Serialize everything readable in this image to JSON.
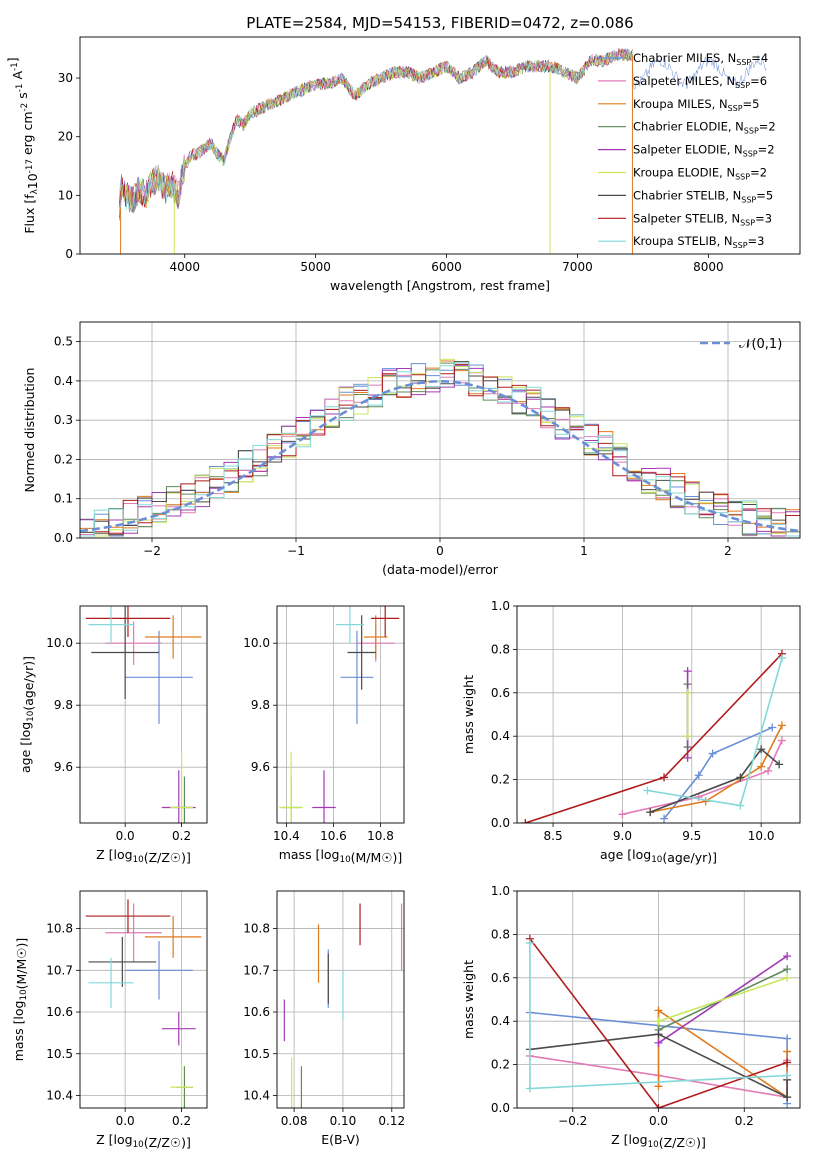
{
  "figure": {
    "title": "PLATE=2584, MJD=54153, FIBERID=0472, z=0.086"
  },
  "models": [
    {
      "name": "Chabrier MILES",
      "nssp": "4",
      "color": "#6b8fd6"
    },
    {
      "name": "Salpeter MILES",
      "nssp": "6",
      "color": "#e07bb6"
    },
    {
      "name": "Kroupa MILES",
      "nssp": "5",
      "color": "#e07a1f"
    },
    {
      "name": "Chabrier ELODIE",
      "nssp": "2",
      "color": "#5f8a5a"
    },
    {
      "name": "Salpeter ELODIE",
      "nssp": "2",
      "color": "#a23bb5"
    },
    {
      "name": "Kroupa ELODIE",
      "nssp": "2",
      "color": "#c8e85a"
    },
    {
      "name": "Chabrier STELIB",
      "nssp": "5",
      "color": "#4a4a4a"
    },
    {
      "name": "Salpeter STELIB",
      "nssp": "3",
      "color": "#b01c1c"
    },
    {
      "name": "Kroupa STELIB",
      "nssp": "3",
      "color": "#84d8d8"
    }
  ],
  "chart_data": [
    {
      "id": "spectrum",
      "type": "line",
      "xlabel": "wavelength [Angstrom, rest frame]",
      "ylabel": "Flux [f_λ10^-17 erg cm^-2 s^-1 A^-1]",
      "xlim": [
        3200,
        8700
      ],
      "ylim": [
        0,
        37
      ],
      "xticks": [
        4000,
        5000,
        6000,
        7000,
        8000
      ],
      "yticks": [
        0,
        10,
        20,
        30
      ],
      "grid": false,
      "legend": "top-right",
      "series_envelope": {
        "x": [
          3500,
          3520,
          3550,
          3600,
          3650,
          3700,
          3750,
          3800,
          3850,
          3900,
          3950,
          4000,
          4050,
          4100,
          4150,
          4200,
          4250,
          4300,
          4350,
          4400,
          4450,
          4500,
          4600,
          4700,
          4800,
          4900,
          5000,
          5100,
          5200,
          5300,
          5400,
          5500,
          5600,
          5700,
          5800,
          5900,
          6000,
          6100,
          6200,
          6300,
          6400,
          6500,
          6600,
          6700,
          6800,
          6900,
          7000,
          7100,
          7200,
          7300,
          7400
        ],
        "y": [
          8,
          12,
          10,
          9,
          11,
          10,
          12,
          13,
          11,
          12,
          10,
          15,
          17,
          17,
          18,
          19,
          17,
          16,
          20,
          23,
          22,
          24,
          25,
          26,
          27,
          28,
          29,
          29,
          30,
          27,
          29,
          30,
          31,
          31,
          30,
          31,
          32,
          30,
          31,
          33,
          31,
          31,
          32,
          32,
          32,
          31,
          30,
          33,
          33,
          34,
          34
        ]
      }
    },
    {
      "id": "residuals",
      "type": "bar",
      "xlabel": "(data-model)/error",
      "ylabel": "Normed distribution",
      "xlim": [
        -2.5,
        2.5
      ],
      "ylim": [
        0,
        0.55
      ],
      "xticks": [
        -2,
        -1,
        0,
        1,
        2
      ],
      "yticks": [
        0.0,
        0.1,
        0.2,
        0.3,
        0.4,
        0.5
      ],
      "grid": true,
      "legend": "top-right",
      "reference_label": "𝒩(0,1)",
      "reference_color": "#6b8fd6"
    },
    {
      "id": "age_vs_Z",
      "type": "scatter",
      "xlabel": "Z [log10(Z/Z☉)]",
      "ylabel": "age  [log10(age/yr)]",
      "xlim": [
        -0.16,
        0.29
      ],
      "ylim": [
        9.42,
        10.12
      ],
      "xticks": [
        0.0,
        0.2
      ],
      "yticks": [
        9.6,
        9.8,
        10.0
      ],
      "grid": true,
      "points": [
        {
          "m": 0,
          "x": 0.12,
          "y": 9.89,
          "xerr": 0.12,
          "yerr": 0.15
        },
        {
          "m": 1,
          "x": 0.03,
          "y": 10.0,
          "xerr": 0.1,
          "yerr": 0.07
        },
        {
          "m": 2,
          "x": 0.17,
          "y": 10.02,
          "xerr": 0.1,
          "yerr": 0.07
        },
        {
          "m": 3,
          "x": 0.21,
          "y": 9.47,
          "xerr": 0.03,
          "yerr": 0.1
        },
        {
          "m": 4,
          "x": 0.19,
          "y": 9.47,
          "xerr": 0.06,
          "yerr": 0.12
        },
        {
          "m": 5,
          "x": 0.2,
          "y": 9.47,
          "xerr": 0.04,
          "yerr": 0.18
        },
        {
          "m": 6,
          "x": 0.0,
          "y": 9.97,
          "xerr": 0.12,
          "yerr": 0.15
        },
        {
          "m": 7,
          "x": 0.01,
          "y": 10.08,
          "xerr": 0.15,
          "yerr": 0.06
        },
        {
          "m": 8,
          "x": -0.05,
          "y": 10.06,
          "xerr": 0.08,
          "yerr": 0.06
        }
      ]
    },
    {
      "id": "age_vs_mass",
      "type": "scatter",
      "xlabel": "mass [log10(M/M☉)]",
      "ylabel": "",
      "xlim": [
        10.36,
        10.9
      ],
      "ylim": [
        9.42,
        10.12
      ],
      "xticks": [
        10.4,
        10.6,
        10.8
      ],
      "yticks": [
        9.6,
        9.8,
        10.0
      ],
      "grid": true,
      "points": [
        {
          "m": 0,
          "x": 10.7,
          "y": 9.89,
          "xerr": 0.07,
          "yerr": 0.15
        },
        {
          "m": 1,
          "x": 10.78,
          "y": 10.0,
          "xerr": 0.08,
          "yerr": 0.06
        },
        {
          "m": 2,
          "x": 10.78,
          "y": 10.02,
          "xerr": 0.05,
          "yerr": 0.07
        },
        {
          "m": 3,
          "x": 10.42,
          "y": 9.47,
          "xerr": 0.04,
          "yerr": 0.1
        },
        {
          "m": 4,
          "x": 10.56,
          "y": 9.47,
          "xerr": 0.05,
          "yerr": 0.12
        },
        {
          "m": 5,
          "x": 10.42,
          "y": 9.47,
          "xerr": 0.05,
          "yerr": 0.18
        },
        {
          "m": 6,
          "x": 10.72,
          "y": 9.97,
          "xerr": 0.06,
          "yerr": 0.12
        },
        {
          "m": 7,
          "x": 10.82,
          "y": 10.08,
          "xerr": 0.06,
          "yerr": 0.06
        },
        {
          "m": 8,
          "x": 10.67,
          "y": 10.06,
          "xerr": 0.06,
          "yerr": 0.06
        }
      ]
    },
    {
      "id": "weight_vs_age",
      "type": "line",
      "xlabel": "age  [log10(age/yr)]",
      "ylabel": "mass weight",
      "xlim": [
        8.24,
        10.28
      ],
      "ylim": [
        0.0,
        1.0
      ],
      "xticks": [
        8.5,
        9.0,
        9.5,
        10.0
      ],
      "yticks": [
        0.0,
        0.2,
        0.4,
        0.6,
        0.8,
        1.0
      ],
      "grid": true,
      "series": [
        {
          "m": 0,
          "x": [
            9.3,
            9.55,
            9.65,
            10.08
          ],
          "y": [
            0.02,
            0.22,
            0.32,
            0.44
          ]
        },
        {
          "m": 1,
          "x": [
            9.0,
            9.55,
            10.05,
            10.15
          ],
          "y": [
            0.04,
            0.12,
            0.24,
            0.38
          ]
        },
        {
          "m": 2,
          "x": [
            9.2,
            9.6,
            10.0,
            10.15
          ],
          "y": [
            0.05,
            0.1,
            0.26,
            0.45
          ]
        },
        {
          "m": 3,
          "x": [
            9.47,
            9.47
          ],
          "y": [
            0.35,
            0.64
          ]
        },
        {
          "m": 4,
          "x": [
            9.47,
            9.47
          ],
          "y": [
            0.3,
            0.7
          ]
        },
        {
          "m": 5,
          "x": [
            9.47,
            9.47
          ],
          "y": [
            0.4,
            0.6
          ]
        },
        {
          "m": 6,
          "x": [
            9.2,
            9.85,
            10.0,
            10.13
          ],
          "y": [
            0.05,
            0.21,
            0.34,
            0.27
          ]
        },
        {
          "m": 7,
          "x": [
            8.3,
            9.3,
            10.15
          ],
          "y": [
            0.0,
            0.21,
            0.78
          ]
        },
        {
          "m": 8,
          "x": [
            9.18,
            9.85,
            10.15
          ],
          "y": [
            0.15,
            0.08,
            0.76
          ]
        }
      ]
    },
    {
      "id": "mass_vs_Z",
      "type": "scatter",
      "xlabel": "Z [log10(Z/Z☉)]",
      "ylabel": "mass [log10(M/M☉)]",
      "xlim": [
        -0.16,
        0.29
      ],
      "ylim": [
        10.37,
        10.89
      ],
      "xticks": [
        0.0,
        0.2
      ],
      "yticks": [
        10.4,
        10.5,
        10.6,
        10.7,
        10.8
      ],
      "grid": true,
      "points": [
        {
          "m": 0,
          "x": 0.12,
          "y": 10.7,
          "xerr": 0.12,
          "yerr": 0.07
        },
        {
          "m": 1,
          "x": 0.03,
          "y": 10.79,
          "xerr": 0.1,
          "yerr": 0.07
        },
        {
          "m": 2,
          "x": 0.17,
          "y": 10.78,
          "xerr": 0.1,
          "yerr": 0.05
        },
        {
          "m": 3,
          "x": 0.21,
          "y": 10.42,
          "xerr": 0.03,
          "yerr": 0.05
        },
        {
          "m": 4,
          "x": 0.19,
          "y": 10.56,
          "xerr": 0.06,
          "yerr": 0.04
        },
        {
          "m": 5,
          "x": 0.2,
          "y": 10.42,
          "xerr": 0.04,
          "yerr": 0.06
        },
        {
          "m": 6,
          "x": -0.01,
          "y": 10.72,
          "xerr": 0.12,
          "yerr": 0.06
        },
        {
          "m": 7,
          "x": 0.01,
          "y": 10.83,
          "xerr": 0.15,
          "yerr": 0.04
        },
        {
          "m": 8,
          "x": -0.05,
          "y": 10.67,
          "xerr": 0.08,
          "yerr": 0.06
        }
      ]
    },
    {
      "id": "mass_vs_ebv",
      "type": "scatter",
      "xlabel": "E(B-V)",
      "ylabel": "",
      "xlim": [
        0.073,
        0.125
      ],
      "ylim": [
        10.37,
        10.89
      ],
      "xticks": [
        0.08,
        0.1,
        0.12
      ],
      "yticks": [
        10.4,
        10.5,
        10.6,
        10.7,
        10.8
      ],
      "grid": true,
      "points": [
        {
          "m": 0,
          "x": 0.094,
          "y": 10.68,
          "yerr": 0.07
        },
        {
          "m": 1,
          "x": 0.124,
          "y": 10.78,
          "yerr": 0.08
        },
        {
          "m": 2,
          "x": 0.09,
          "y": 10.74,
          "yerr": 0.07
        },
        {
          "m": 3,
          "x": 0.083,
          "y": 10.42,
          "yerr": 0.05
        },
        {
          "m": 4,
          "x": 0.076,
          "y": 10.58,
          "yerr": 0.05
        },
        {
          "m": 5,
          "x": 0.079,
          "y": 10.43,
          "yerr": 0.06
        },
        {
          "m": 6,
          "x": 0.094,
          "y": 10.68,
          "yerr": 0.06
        },
        {
          "m": 7,
          "x": 0.107,
          "y": 10.81,
          "yerr": 0.05
        },
        {
          "m": 8,
          "x": 0.1,
          "y": 10.64,
          "yerr": 0.06
        }
      ]
    },
    {
      "id": "weight_vs_Z",
      "type": "line",
      "xlabel": "Z [log10(Z/Z☉)]",
      "ylabel": "mass weight",
      "xlim": [
        -0.33,
        0.33
      ],
      "ylim": [
        0.0,
        1.0
      ],
      "xticks": [
        -0.2,
        0.0,
        0.2
      ],
      "yticks": [
        0.0,
        0.2,
        0.4,
        0.6,
        0.8,
        1.0
      ],
      "grid": true,
      "series": [
        {
          "m": 0,
          "x": [
            -0.3,
            0.3,
            0.3
          ],
          "y": [
            0.44,
            0.32,
            0.02
          ]
        },
        {
          "m": 1,
          "x": [
            -0.3,
            0.0,
            0.3,
            0.3
          ],
          "y": [
            0.24,
            0.15,
            0.05,
            0.22
          ]
        },
        {
          "m": 2,
          "x": [
            0.0,
            0.0,
            0.3,
            0.3
          ],
          "y": [
            0.1,
            0.45,
            0.05,
            0.26
          ]
        },
        {
          "m": 3,
          "x": [
            0.0,
            0.3
          ],
          "y": [
            0.36,
            0.64
          ]
        },
        {
          "m": 4,
          "x": [
            0.0,
            0.3
          ],
          "y": [
            0.3,
            0.7
          ]
        },
        {
          "m": 5,
          "x": [
            0.0,
            0.3
          ],
          "y": [
            0.4,
            0.6
          ]
        },
        {
          "m": 6,
          "x": [
            -0.3,
            0.0,
            0.3,
            0.3
          ],
          "y": [
            0.27,
            0.34,
            0.05,
            0.13
          ]
        },
        {
          "m": 7,
          "x": [
            -0.3,
            0.0,
            0.3
          ],
          "y": [
            0.78,
            0.0,
            0.21
          ]
        },
        {
          "m": 8,
          "x": [
            -0.3,
            -0.3,
            0.3
          ],
          "y": [
            0.76,
            0.09,
            0.15
          ]
        }
      ]
    }
  ]
}
